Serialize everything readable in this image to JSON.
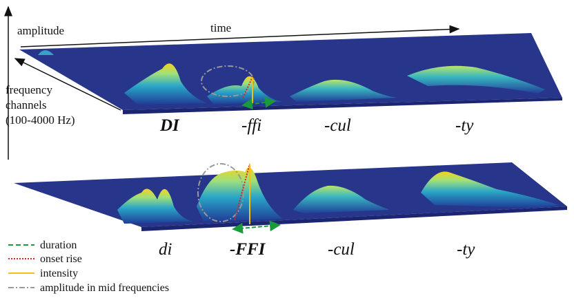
{
  "axes": {
    "amplitude": "amplitude",
    "time": "time",
    "frequency": [
      "frequency",
      "channels",
      "(100-4000 Hz)"
    ]
  },
  "panels": [
    {
      "syllables": [
        "DI",
        "-ffi",
        "-cul",
        "-ty"
      ]
    },
    {
      "syllables": [
        "di",
        "-FFI",
        "-cul",
        "-ty"
      ]
    }
  ],
  "legend": [
    {
      "label": "duration"
    },
    {
      "label": "onset rise"
    },
    {
      "label": "intensity"
    },
    {
      "label": "amplitude in mid frequencies"
    }
  ]
}
